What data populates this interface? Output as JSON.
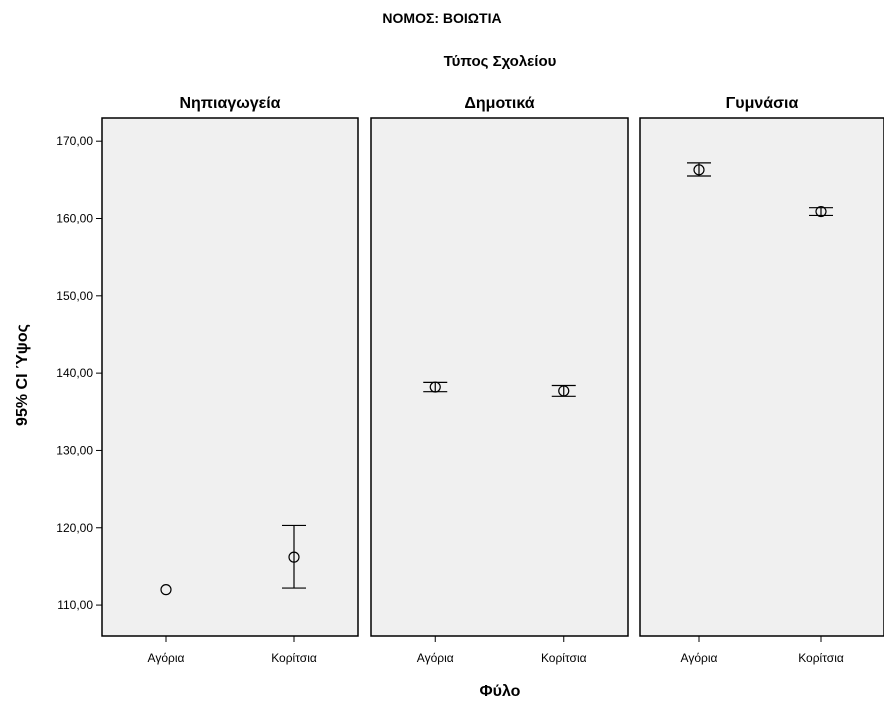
{
  "chart_data": {
    "type": "errorbar",
    "title": "ΝΟΜΟΣ: ΒΟΙΩΤΙΑ",
    "panel_group_label": "Τύπος Σχολείου",
    "xlabel": "Φύλο",
    "ylabel": "95% CI Ύψος",
    "ylim": [
      106,
      173
    ],
    "yticks": [
      110,
      120,
      130,
      140,
      150,
      160,
      170
    ],
    "ytick_labels": [
      "110,00",
      "120,00",
      "130,00",
      "140,00",
      "150,00",
      "160,00",
      "170,00"
    ],
    "categories": [
      "Αγόρια",
      "Κορίτσια"
    ],
    "grid": false,
    "colors": {
      "panel_bg": "#f0f0f0",
      "marker": "#000000",
      "frame": "#000000"
    },
    "panels": [
      {
        "name": "Νηπιαγωγεία",
        "points": [
          {
            "category": "Αγόρια",
            "mean": 112.0,
            "lower": null,
            "upper": null
          },
          {
            "category": "Κορίτσια",
            "mean": 116.2,
            "lower": 112.2,
            "upper": 120.3
          }
        ]
      },
      {
        "name": "Δημοτικά",
        "points": [
          {
            "category": "Αγόρια",
            "mean": 138.2,
            "lower": 137.6,
            "upper": 138.8
          },
          {
            "category": "Κορίτσια",
            "mean": 137.7,
            "lower": 137.0,
            "upper": 138.4
          }
        ]
      },
      {
        "name": "Γυμνάσια",
        "points": [
          {
            "category": "Αγόρια",
            "mean": 166.3,
            "lower": 165.5,
            "upper": 167.2
          },
          {
            "category": "Κορίτσια",
            "mean": 160.9,
            "lower": 160.4,
            "upper": 161.4
          }
        ]
      }
    ]
  }
}
